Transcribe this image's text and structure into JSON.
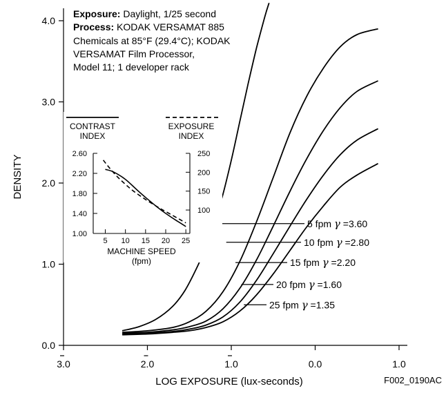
{
  "chart_data": [
    {
      "type": "line",
      "title": "",
      "xlabel": "LOG EXPOSURE (lux-seconds)",
      "ylabel": "DENSITY",
      "x_tick_labels": [
        "3.0",
        "2.0",
        "1.0",
        "0.0",
        "1.0"
      ],
      "x_tick_bars": [
        true,
        true,
        true,
        false,
        false
      ],
      "y_tick_labels": [
        "0.0",
        "1.0",
        "2.0",
        "3.0",
        "4.0"
      ],
      "xlim": [
        -3.0,
        1.0
      ],
      "ylim": [
        0.0,
        4.0
      ],
      "grid": false,
      "annotation": {
        "line1_bold": "Exposure:",
        "line1": " Daylight, 1/25 second",
        "line2_bold": "Process:",
        "line2": " KODAK VERSAMAT 885",
        "line3": "Chemicals at 85°F (29.4°C); KODAK",
        "line4": "VERSAMAT Film Processor,",
        "line5": "Model 11; 1 developer rack"
      },
      "series": [
        {
          "name": "5 fpm",
          "gamma_symbol": "γ",
          "gamma": "=3.60",
          "x": [
            -2.3,
            -2.1,
            -1.9,
            -1.7,
            -1.55,
            -1.4,
            -1.3,
            -1.2,
            -1.1,
            -1.0,
            -0.9,
            -0.8,
            -0.7,
            -0.6,
            -0.55
          ],
          "y": [
            0.18,
            0.23,
            0.32,
            0.48,
            0.68,
            0.98,
            1.23,
            1.52,
            1.86,
            2.28,
            2.75,
            3.22,
            3.66,
            4.05,
            4.22
          ]
        },
        {
          "name": "10 fpm",
          "gamma_symbol": "γ",
          "gamma": "=2.80",
          "x": [
            -2.3,
            -2.0,
            -1.7,
            -1.5,
            -1.3,
            -1.1,
            -0.9,
            -0.7,
            -0.5,
            -0.3,
            -0.1,
            0.1,
            0.3,
            0.5,
            0.75
          ],
          "y": [
            0.16,
            0.18,
            0.22,
            0.29,
            0.42,
            0.66,
            1.03,
            1.52,
            2.07,
            2.62,
            3.07,
            3.42,
            3.68,
            3.83,
            3.9
          ]
        },
        {
          "name": "15 fpm",
          "gamma_symbol": "γ",
          "gamma": "=2.20",
          "x": [
            -2.3,
            -2.0,
            -1.7,
            -1.5,
            -1.3,
            -1.1,
            -0.9,
            -0.7,
            -0.5,
            -0.3,
            -0.1,
            0.1,
            0.3,
            0.5,
            0.75
          ],
          "y": [
            0.15,
            0.16,
            0.19,
            0.23,
            0.3,
            0.45,
            0.7,
            1.05,
            1.47,
            1.9,
            2.3,
            2.65,
            2.93,
            3.13,
            3.26
          ]
        },
        {
          "name": "20 fpm",
          "gamma_symbol": "γ",
          "gamma": "=1.60",
          "x": [
            -2.3,
            -2.0,
            -1.7,
            -1.5,
            -1.3,
            -1.1,
            -0.9,
            -0.7,
            -0.5,
            -0.3,
            -0.1,
            0.1,
            0.3,
            0.5,
            0.75
          ],
          "y": [
            0.14,
            0.15,
            0.17,
            0.2,
            0.25,
            0.35,
            0.53,
            0.8,
            1.13,
            1.47,
            1.8,
            2.1,
            2.35,
            2.53,
            2.67
          ]
        },
        {
          "name": "25 fpm",
          "gamma_symbol": "γ",
          "gamma": "=1.35",
          "x": [
            -2.3,
            -2.0,
            -1.7,
            -1.5,
            -1.3,
            -1.1,
            -0.9,
            -0.7,
            -0.5,
            -0.3,
            -0.1,
            0.1,
            0.3,
            0.5,
            0.75
          ],
          "y": [
            0.13,
            0.14,
            0.16,
            0.18,
            0.22,
            0.29,
            0.42,
            0.62,
            0.88,
            1.17,
            1.46,
            1.72,
            1.95,
            2.1,
            2.24
          ]
        }
      ],
      "series_label_anchors": [
        {
          "x": -1.17,
          "y": 1.5
        },
        {
          "x": -1.06,
          "y": 1.27
        },
        {
          "x": -0.95,
          "y": 1.02
        },
        {
          "x": -0.88,
          "y": 0.75
        },
        {
          "x": -0.85,
          "y": 0.5
        }
      ]
    },
    {
      "type": "line",
      "title": "",
      "xlabel": "MACHINE SPEED",
      "xlabel_sub": "(fpm)",
      "left_legend": [
        "CONTRAST",
        "INDEX"
      ],
      "right_legend": [
        "EXPOSURE",
        "INDEX"
      ],
      "x_ticks": [
        5,
        10,
        15,
        20,
        25
      ],
      "xlim": [
        2,
        26
      ],
      "y_left_ticks": [
        "1.00",
        "1.40",
        "1.80",
        "2.20",
        "2.60"
      ],
      "y_left_lim": [
        1.0,
        2.6
      ],
      "y_right_ticks": [
        "100",
        "150",
        "200",
        "250"
      ],
      "y_right_lim": [
        38,
        250
      ],
      "series": [
        {
          "axis": "left",
          "style": "solid",
          "x": [
            5,
            7,
            10,
            13,
            15,
            18,
            20,
            23,
            25
          ],
          "y": [
            2.28,
            2.23,
            2.08,
            1.86,
            1.72,
            1.52,
            1.4,
            1.24,
            1.14
          ]
        },
        {
          "axis": "right",
          "style": "dashed",
          "x": [
            4.5,
            6,
            8,
            10,
            12,
            15,
            18,
            20,
            23,
            25
          ],
          "y": [
            232,
            212,
            188,
            168,
            150,
            128,
            108,
            96,
            78,
            66
          ]
        }
      ]
    }
  ],
  "figure_id": "F002_0190AC"
}
